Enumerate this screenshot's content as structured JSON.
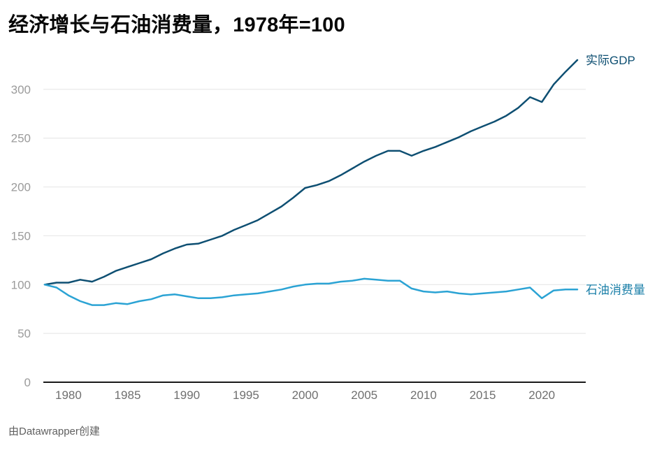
{
  "header": {
    "title": "经济增长与石油消费量，1978年=100"
  },
  "footer": {
    "attribution": "由Datawrapper创建"
  },
  "colors": {
    "background": "#ffffff",
    "grid": "#e4e4e4",
    "axis": "#1a1a1a",
    "x_tick_label": "#6f6f6f",
    "y_tick_label": "#9b9b9b"
  },
  "chart_data": {
    "type": "line",
    "title": "经济增长与石油消费量，1978年=100",
    "xlabel": "",
    "ylabel": "",
    "ylim": [
      0,
      350
    ],
    "yticks": [
      0,
      50,
      100,
      150,
      200,
      250,
      300
    ],
    "xticks": [
      1980,
      1985,
      1990,
      1995,
      2000,
      2005,
      2010,
      2015,
      2020
    ],
    "grid": true,
    "legend_position": "right-of-line-end",
    "x": [
      1978,
      1979,
      1980,
      1981,
      1982,
      1983,
      1984,
      1985,
      1986,
      1987,
      1988,
      1989,
      1990,
      1991,
      1992,
      1993,
      1994,
      1995,
      1996,
      1997,
      1998,
      1999,
      2000,
      2001,
      2002,
      2003,
      2004,
      2005,
      2006,
      2007,
      2008,
      2009,
      2010,
      2011,
      2012,
      2013,
      2014,
      2015,
      2016,
      2017,
      2018,
      2019,
      2020,
      2021,
      2022,
      2023
    ],
    "series": [
      {
        "name": "实际GDP",
        "color": "#0e4f72",
        "label_color": "#0e4f72",
        "values": [
          100,
          102,
          102,
          105,
          103,
          108,
          114,
          118,
          122,
          126,
          132,
          137,
          141,
          142,
          146,
          150,
          156,
          161,
          166,
          173,
          180,
          189,
          199,
          202,
          206,
          212,
          219,
          226,
          232,
          237,
          237,
          232,
          237,
          241,
          246,
          251,
          257,
          262,
          267,
          273,
          281,
          292,
          287,
          305,
          318,
          330
        ]
      },
      {
        "name": "石油消费量",
        "color": "#2ba3d4",
        "label_color": "#1a7fa8",
        "values": [
          100,
          97,
          89,
          83,
          79,
          79,
          81,
          80,
          83,
          85,
          89,
          90,
          88,
          86,
          86,
          87,
          89,
          90,
          91,
          93,
          95,
          98,
          100,
          101,
          101,
          103,
          104,
          106,
          105,
          104,
          104,
          96,
          93,
          92,
          93,
          91,
          90,
          91,
          92,
          93,
          95,
          97,
          86,
          94,
          95,
          95
        ]
      }
    ]
  }
}
